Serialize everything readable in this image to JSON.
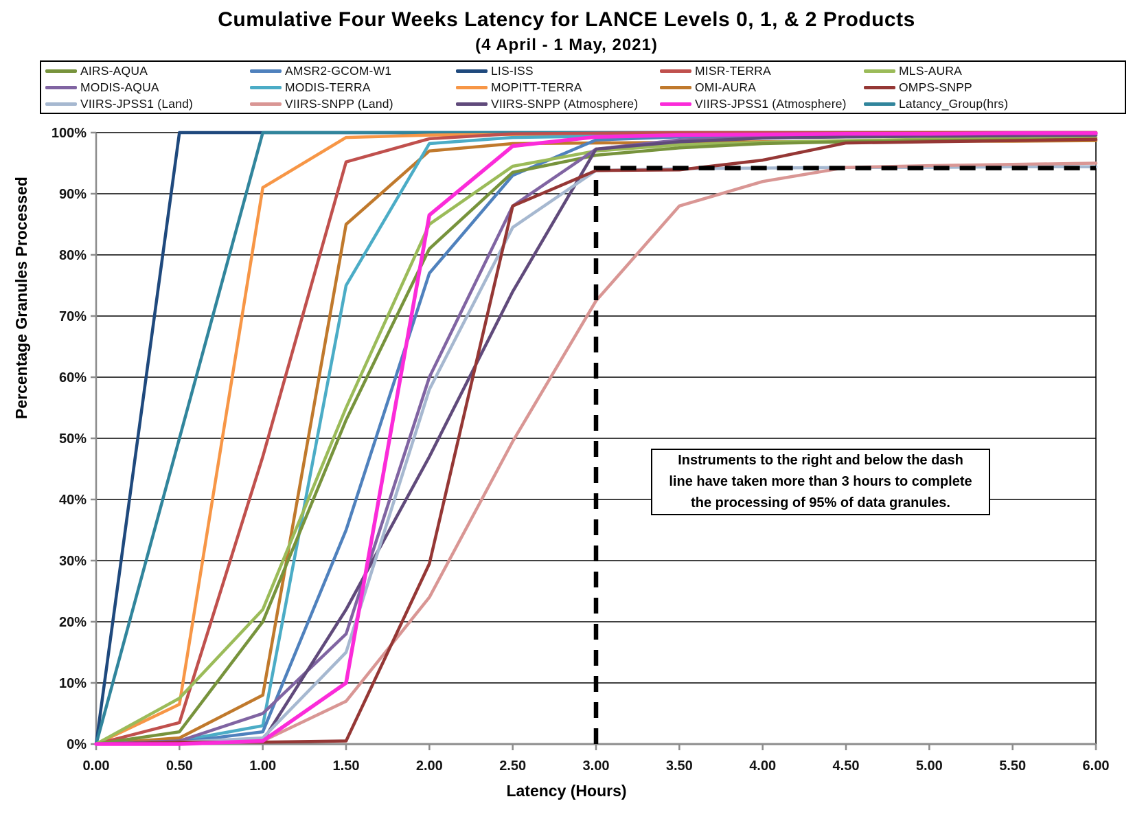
{
  "title": "Cumulative Four Weeks Latency  for LANCE Levels 0, 1, & 2 Products",
  "subtitle": "(4  April  - 1  May,  2021)",
  "axes": {
    "x_label": "Latency (Hours)",
    "y_label": "Percentage Granules Processed",
    "x_ticks": [
      "0.00",
      "0.50",
      "1.00",
      "1.50",
      "2.00",
      "2.50",
      "3.00",
      "3.50",
      "4.00",
      "4.50",
      "5.00",
      "5.50",
      "6.00"
    ],
    "y_ticks": [
      "100%",
      "90%",
      "80%",
      "70%",
      "60%",
      "50%",
      "40%",
      "30%",
      "20%",
      "10%",
      "0%"
    ]
  },
  "annotation": {
    "line1": "Instruments to the right and below the dash",
    "line2": "line have taken more than 3 hours to complete",
    "line3": "the processing of 95% of data granules."
  },
  "chart_data": {
    "type": "line",
    "title": "Cumulative Four Weeks Latency for LANCE Levels 0, 1, & 2 Products (4 April - 1 May, 2021)",
    "xlabel": "Latency (Hours)",
    "ylabel": "Percentage Granules Processed",
    "xlim": [
      0,
      6
    ],
    "ylim": [
      0,
      100
    ],
    "grid": "horizontal",
    "legend_position": "top",
    "x": [
      0,
      0.5,
      1.0,
      1.5,
      2.0,
      2.5,
      3.0,
      3.5,
      4.0,
      4.5,
      5.0,
      5.5,
      6.0
    ],
    "series": [
      {
        "name": "AIRS-AQUA",
        "color": "#77933c",
        "values": [
          0,
          2,
          20,
          53,
          81,
          93.5,
          96.3,
          97.5,
          98.2,
          98.5,
          98.7,
          98.8,
          98.9
        ]
      },
      {
        "name": "AMSR2-GCOM-W1",
        "color": "#4f81bd",
        "values": [
          0,
          0.3,
          2,
          35,
          77,
          93,
          98.8,
          99.3,
          99.5,
          99.6,
          99.7,
          99.8,
          99.9
        ]
      },
      {
        "name": "LIS-ISS",
        "color": "#1f497d",
        "values": [
          0,
          100,
          100,
          100,
          100,
          100,
          100,
          100,
          100,
          100,
          100,
          100,
          100
        ]
      },
      {
        "name": "MISR-TERRA",
        "color": "#c0504d",
        "values": [
          0,
          3.5,
          47,
          95.2,
          99,
          99.8,
          99.9,
          100,
          100,
          100,
          100,
          100,
          100
        ]
      },
      {
        "name": "MLS-AURA",
        "color": "#9bbb59",
        "values": [
          0,
          7.5,
          22,
          55,
          85,
          94.5,
          97,
          98,
          98.4,
          98.7,
          98.9,
          99.1,
          99.2
        ]
      },
      {
        "name": "MODIS-AQUA",
        "color": "#8064a2",
        "values": [
          0,
          0.5,
          5,
          18,
          60,
          88,
          97.3,
          98.8,
          99.2,
          99.3,
          99.4,
          99.5,
          99.6
        ]
      },
      {
        "name": "MODIS-TERRA",
        "color": "#4bacc6",
        "values": [
          0,
          0.5,
          3,
          75,
          98.2,
          99.2,
          99.4,
          99.5,
          99.6,
          99.7,
          99.8,
          99.8,
          99.9
        ]
      },
      {
        "name": "MOPITT-TERRA",
        "color": "#f79646",
        "values": [
          0,
          6.5,
          91,
          99.2,
          99.6,
          99.7,
          99.8,
          99.8,
          99.9,
          99.9,
          100,
          100,
          100
        ]
      },
      {
        "name": "OMI-AURA",
        "color": "#c0792c",
        "values": [
          0,
          1,
          8,
          85,
          97,
          98.2,
          98.3,
          98.4,
          98.5,
          98.5,
          98.6,
          98.6,
          98.7
        ]
      },
      {
        "name": "OMPS-SNPP",
        "color": "#953735",
        "values": [
          0,
          0.3,
          0.3,
          0.5,
          29.5,
          88,
          93.8,
          93.9,
          95.5,
          98.3,
          98.5,
          98.7,
          98.9
        ]
      },
      {
        "name": "VIIRS-JPSS1 (Land)",
        "color": "#a6b8d0",
        "values": [
          0,
          0.3,
          1,
          15,
          58,
          84.5,
          93.8,
          94.1,
          94.2,
          94.3,
          94.3,
          94.4,
          94.4
        ]
      },
      {
        "name": "VIIRS-SNPP (Land)",
        "color": "#d99694",
        "values": [
          0,
          0,
          0.5,
          7,
          24,
          49.5,
          72.5,
          88,
          92,
          94.3,
          94.6,
          94.8,
          95
        ]
      },
      {
        "name": "VIIRS-SNPP (Atmosphere)",
        "color": "#604a7b",
        "values": [
          0,
          0,
          0.5,
          22,
          47,
          74,
          97.3,
          98.5,
          99.1,
          99.3,
          99.4,
          99.5,
          99.6
        ]
      },
      {
        "name": "VIIRS-JPSS1 (Atmosphere)",
        "color": "#fb2bd9",
        "values": [
          0,
          0,
          0.5,
          10,
          86.5,
          97.8,
          99.3,
          99.6,
          99.7,
          99.8,
          99.8,
          99.9,
          99.9
        ]
      },
      {
        "name": "Latancy_Group(hrs)",
        "color": "#31859c",
        "values": [
          0,
          50,
          100,
          100,
          100,
          100,
          100,
          100,
          100,
          100,
          100,
          100,
          100
        ]
      }
    ],
    "reference_dashed_line": {
      "description": "95% compliance threshold marker: vertical at 3 hours, horizontal at ~94.2%",
      "x_hours": 3.0,
      "y_percent": 94.2,
      "color": "#000000",
      "style": "dashed"
    }
  }
}
